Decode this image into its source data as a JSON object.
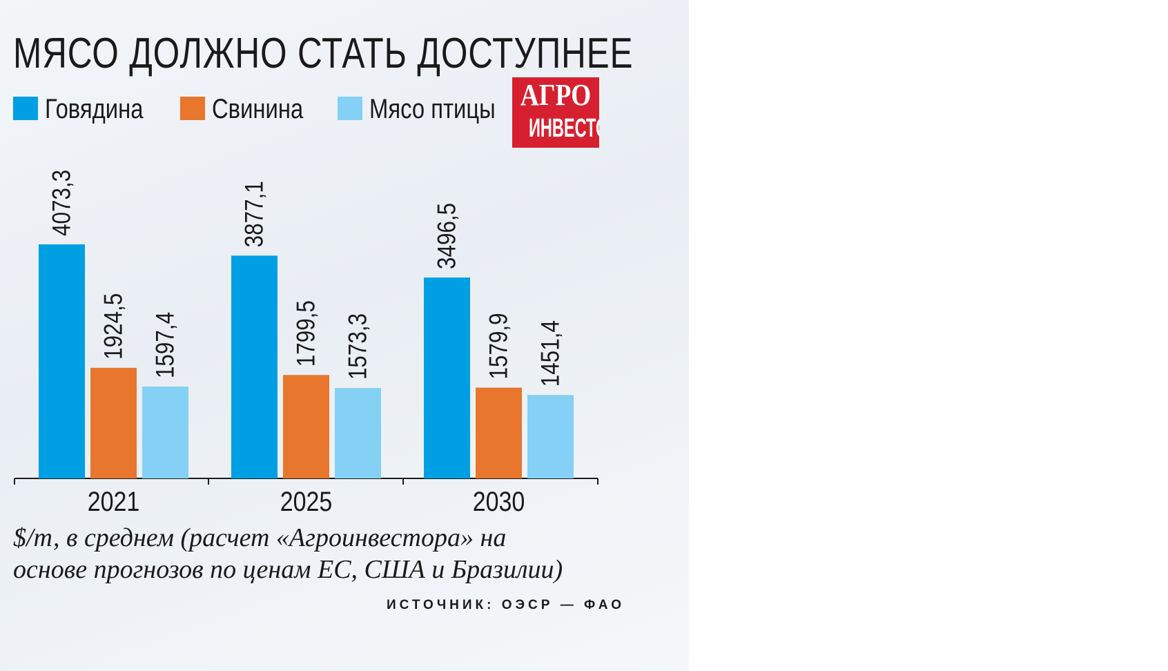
{
  "chart_data": {
    "type": "bar",
    "title": "МЯСО ДОЛЖНО СТАТЬ ДОСТУПНЕЕ",
    "categories": [
      "2021",
      "2025",
      "2030"
    ],
    "series": [
      {
        "name": "Говядина",
        "color": "#009fe3",
        "values": [
          4073.3,
          3877.1,
          3496.5
        ],
        "labels": [
          "4073,3",
          "3877,1",
          "3496,5"
        ]
      },
      {
        "name": "Свинина",
        "color": "#e8762c",
        "values": [
          1924.5,
          1799.5,
          1579.9
        ],
        "labels": [
          "1924,5",
          "1799,5",
          "1579,9"
        ]
      },
      {
        "name": "Мясо птицы",
        "color": "#85d0f5",
        "values": [
          1597.4,
          1573.3,
          1451.4
        ],
        "labels": [
          "1597,4",
          "1573,3",
          "1451,4"
        ]
      }
    ],
    "ylim": [
      0,
      4073.3
    ],
    "grid": false,
    "legend": "top-left",
    "note": "$/т, в среднем (расчет «Агроинвестора» на основе прогнозов по ценам ЕС, США и Бразилии)",
    "source": "ИСТОЧНИК: ОЭСР — ФАО"
  },
  "logo": {
    "line1": "АГРО",
    "line2": "ИНВЕСТОР"
  }
}
